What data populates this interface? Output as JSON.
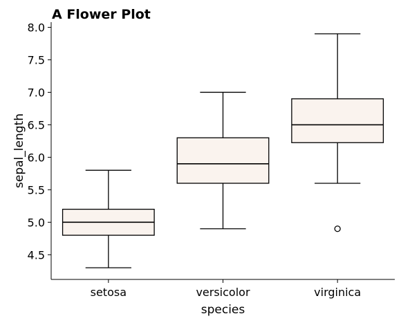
{
  "chart_data": {
    "type": "box",
    "title": "A Flower Plot",
    "xlabel": "species",
    "ylabel": "sepal_length",
    "categories": [
      "setosa",
      "versicolor",
      "virginica"
    ],
    "boxes": [
      {
        "category": "setosa",
        "whisker_low": 4.3,
        "q1": 4.8,
        "median": 5.0,
        "q3": 5.2,
        "whisker_high": 5.8,
        "outliers": []
      },
      {
        "category": "versicolor",
        "whisker_low": 4.9,
        "q1": 5.6,
        "median": 5.9,
        "q3": 6.3,
        "whisker_high": 7.0,
        "outliers": []
      },
      {
        "category": "virginica",
        "whisker_low": 5.6,
        "q1": 6.225,
        "median": 6.5,
        "q3": 6.9,
        "whisker_high": 7.9,
        "outliers": [
          4.9
        ]
      }
    ],
    "ylim": [
      4.12,
      8.08
    ],
    "yticks": [
      4.5,
      5.0,
      5.5,
      6.0,
      6.5,
      7.0,
      7.5,
      8.0
    ],
    "ytick_labels": [
      "4.5",
      "5.0",
      "5.5",
      "6.0",
      "6.5",
      "7.0",
      "7.5",
      "8.0"
    ],
    "grid": false,
    "legend": "none",
    "box_fill": "#faf3ee",
    "line_color": "#000000"
  }
}
